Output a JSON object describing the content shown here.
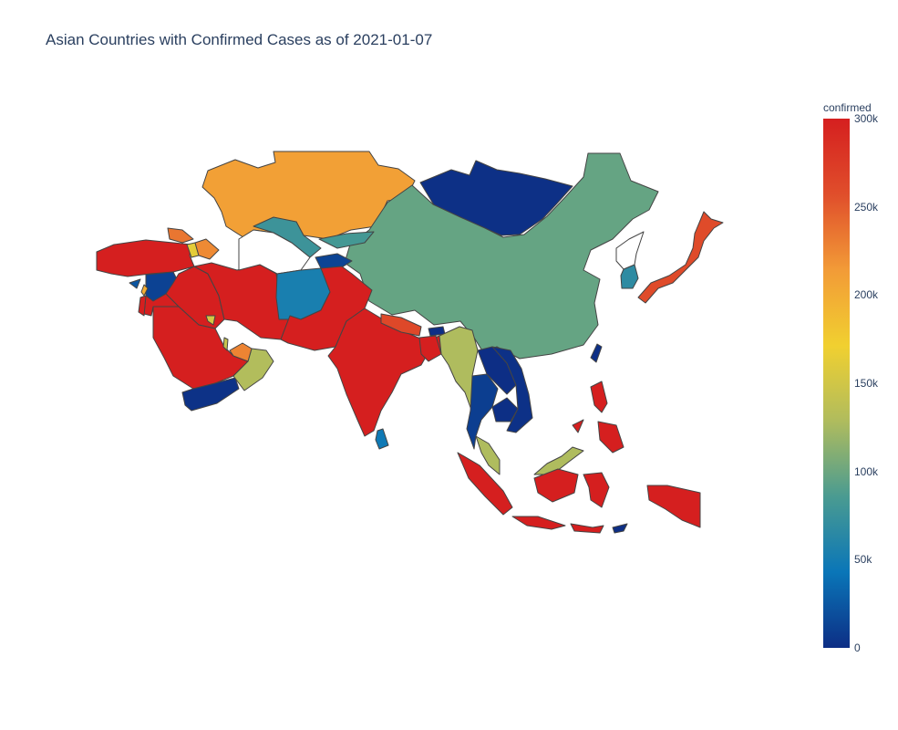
{
  "title": "Asian Countries with Confirmed Cases as of 2021-01-07",
  "colorbar": {
    "title": "confirmed",
    "min": 0,
    "max": 300000,
    "ticks": [
      {
        "value": 300000,
        "label": "300k"
      },
      {
        "value": 250000,
        "label": "250k"
      },
      {
        "value": 200000,
        "label": "200k"
      },
      {
        "value": 150000,
        "label": "150k"
      },
      {
        "value": 100000,
        "label": "100k"
      },
      {
        "value": 50000,
        "label": "50k"
      },
      {
        "value": 0,
        "label": "0"
      }
    ],
    "colorscale": [
      "#0d2e85",
      "#0a76b8",
      "#4a9b91",
      "#b0bc5d",
      "#f1d030",
      "#f29b37",
      "#e04e2b",
      "#d51f1f"
    ]
  },
  "chart_data": {
    "type": "choropleth",
    "value_label": "confirmed",
    "date": "2021-01-07",
    "regions": [
      {
        "name": "Kazakhstan",
        "value": 210000
      },
      {
        "name": "Mongolia",
        "value": 1100
      },
      {
        "name": "China",
        "value": 97000
      },
      {
        "name": "Japan",
        "value": 260000
      },
      {
        "name": "South Korea",
        "value": 67000
      },
      {
        "name": "North Korea",
        "value": null
      },
      {
        "name": "Taiwan",
        "value": 800
      },
      {
        "name": "Turkey",
        "value": 2300000
      },
      {
        "name": "Syria",
        "value": 12000
      },
      {
        "name": "Iraq",
        "value": 600000
      },
      {
        "name": "Iran",
        "value": 1280000
      },
      {
        "name": "Saudi Arabia",
        "value": 363000
      },
      {
        "name": "Yemen",
        "value": 2100
      },
      {
        "name": "Oman",
        "value": 130000
      },
      {
        "name": "United Arab Emirates",
        "value": 227000
      },
      {
        "name": "Qatar",
        "value": 144000
      },
      {
        "name": "Jordan",
        "value": 303000
      },
      {
        "name": "Israel",
        "value": 470000
      },
      {
        "name": "Lebanon",
        "value": 200000
      },
      {
        "name": "Kuwait",
        "value": 152000
      },
      {
        "name": "Georgia",
        "value": 235000
      },
      {
        "name": "Armenia",
        "value": 163000
      },
      {
        "name": "Azerbaijan",
        "value": 224000
      },
      {
        "name": "Turkmenistan",
        "value": null
      },
      {
        "name": "Uzbekistan",
        "value": 77000
      },
      {
        "name": "Kyrgyzstan",
        "value": 82000
      },
      {
        "name": "Tajikistan",
        "value": 13000
      },
      {
        "name": "Afghanistan",
        "value": 53000
      },
      {
        "name": "Pakistan",
        "value": 500000
      },
      {
        "name": "India",
        "value": 10400000
      },
      {
        "name": "Nepal",
        "value": 263000
      },
      {
        "name": "Bhutan",
        "value": 700
      },
      {
        "name": "Bangladesh",
        "value": 519000
      },
      {
        "name": "Sri Lanka",
        "value": 46000
      },
      {
        "name": "Myanmar",
        "value": 128000
      },
      {
        "name": "Thailand",
        "value": 9600
      },
      {
        "name": "Laos",
        "value": 41
      },
      {
        "name": "Cambodia",
        "value": 390
      },
      {
        "name": "Vietnam",
        "value": 1500
      },
      {
        "name": "Malaysia",
        "value": 128000
      },
      {
        "name": "Indonesia",
        "value": 797000
      },
      {
        "name": "Philippines",
        "value": 480000
      },
      {
        "name": "Timor-Leste",
        "value": 50
      },
      {
        "name": "Cyprus",
        "value": 24000
      }
    ]
  }
}
